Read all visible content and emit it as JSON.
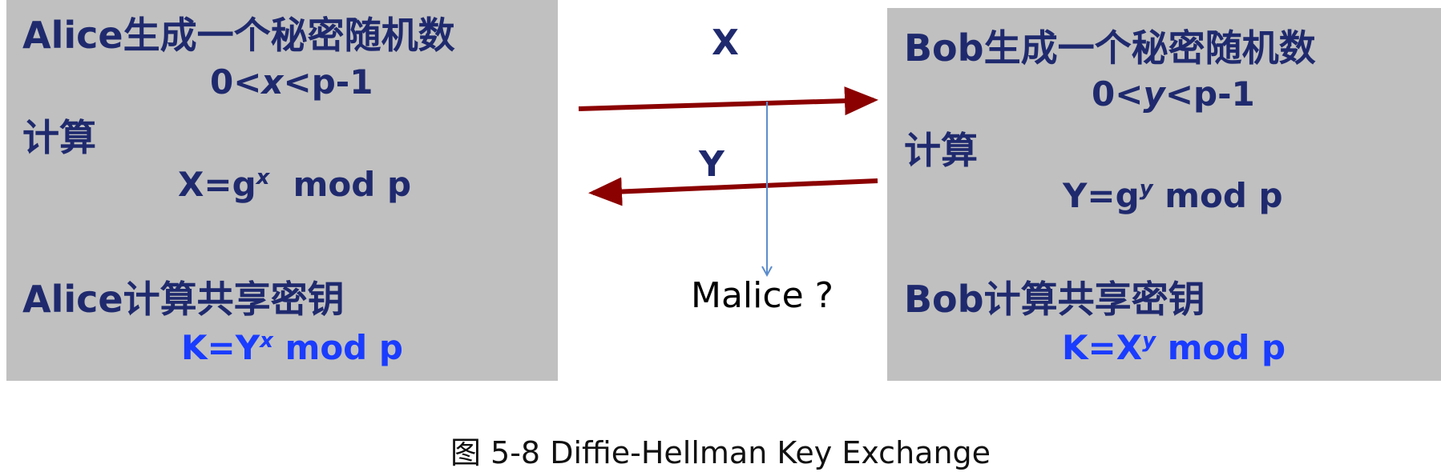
{
  "alice": {
    "intro": "Alice生成一个秘密随机数",
    "range": {
      "left": "0<",
      "var": "x",
      "right": "<p-1"
    },
    "compute_label": "计算",
    "public": {
      "lhs": "X=g",
      "exp": "x",
      "rhs": "mod p"
    },
    "shared_label": "Alice计算共享密钥",
    "shared": {
      "lhs": "K=Y",
      "exp": "x",
      "rhs": "mod p"
    }
  },
  "bob": {
    "intro": "Bob生成一个秘密随机数",
    "range": {
      "left": "0<",
      "var": "y",
      "right": "<p-1"
    },
    "compute_label": "计算",
    "public": {
      "lhs": "Y=g",
      "exp": "y",
      "rhs": "mod p"
    },
    "shared_label": "Bob计算共享密钥",
    "shared": {
      "lhs": "K=X",
      "exp": "y",
      "rhs": "mod p"
    }
  },
  "messages": {
    "to_bob": "X",
    "to_alice": "Y",
    "eavesdropper": "Malice ?"
  },
  "caption": "图 5-8  Diffie-Hellman Key Exchange",
  "colors": {
    "panel": "#c0c0c0",
    "text": "#1f2a6e",
    "key": "#1a3cff",
    "arrow": "#8b0000",
    "intercept": "#5b8ccc"
  }
}
